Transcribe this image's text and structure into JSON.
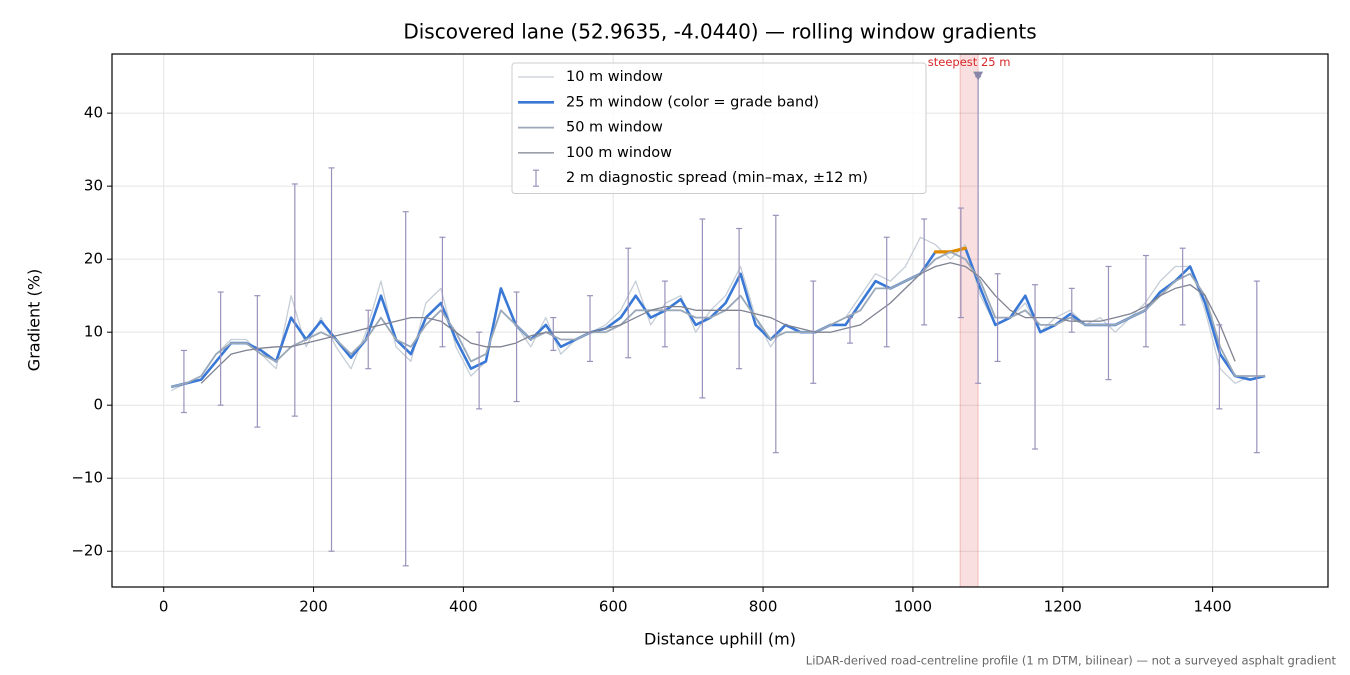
{
  "chart_data": {
    "type": "line",
    "title": "Discovered lane (52.9635, -4.0440) — rolling window gradients",
    "xlabel": "Distance uphill (m)",
    "ylabel": "Gradient (%)",
    "footnote": "LiDAR-derived road-centreline profile (1 m DTM, bilinear) — not a surveyed asphalt gradient",
    "xlim": [
      -69,
      1554
    ],
    "ylim": [
      -24.9,
      48.1
    ],
    "xticks": [
      0,
      200,
      400,
      600,
      800,
      1000,
      1200,
      1400
    ],
    "yticks": [
      {
        "value": -20,
        "label": "−20"
      },
      {
        "value": -10,
        "label": "−10"
      },
      0,
      10,
      20,
      30,
      40
    ],
    "grid": true,
    "legend": "upper center",
    "x": [
      10,
      30,
      50,
      70,
      90,
      110,
      130,
      150,
      170,
      190,
      210,
      230,
      250,
      270,
      290,
      310,
      330,
      350,
      370,
      390,
      410,
      430,
      450,
      470,
      490,
      510,
      530,
      550,
      570,
      590,
      610,
      630,
      650,
      670,
      690,
      710,
      730,
      750,
      770,
      790,
      810,
      830,
      850,
      870,
      890,
      910,
      930,
      950,
      970,
      990,
      1010,
      1030,
      1050,
      1070,
      1090,
      1110,
      1130,
      1150,
      1170,
      1190,
      1210,
      1230,
      1250,
      1270,
      1290,
      1310,
      1330,
      1350,
      1370,
      1390,
      1410,
      1430,
      1450,
      1470
    ],
    "series": [
      {
        "name": "10 m window",
        "color": "#c6ced7",
        "width": 1.3,
        "values": [
          2,
          3,
          4,
          7,
          9,
          9,
          7,
          5,
          15,
          8,
          12,
          8,
          5,
          10,
          17,
          8,
          6,
          14,
          16,
          8,
          4,
          6,
          16,
          11,
          8,
          12,
          7,
          9,
          10,
          11,
          13,
          17,
          11,
          14,
          15,
          10,
          13,
          15,
          19,
          12,
          8,
          11,
          10,
          10,
          11,
          12,
          15,
          18,
          17,
          19,
          23,
          22,
          20,
          22,
          15,
          11,
          12,
          14,
          10,
          12,
          13,
          11,
          12,
          10,
          12,
          14,
          17,
          19,
          19,
          13,
          5,
          3,
          4,
          4
        ]
      },
      {
        "name": "25 m window (color = grade band)",
        "color": "#3a78d6",
        "width": 2.6,
        "band_threshold": 20,
        "band_color": "#e08a00",
        "values": [
          2.5,
          3,
          3.5,
          6,
          8.5,
          8.5,
          7.5,
          6,
          12,
          9,
          11.5,
          9,
          6.5,
          9,
          15,
          9,
          7,
          12,
          14,
          9,
          5,
          6,
          16,
          11,
          9,
          11,
          8,
          9,
          10,
          10.5,
          12,
          15,
          12,
          13,
          14.5,
          11,
          12,
          14,
          18,
          11,
          9,
          11,
          10,
          10,
          11,
          11,
          14,
          17,
          16,
          17,
          18,
          21,
          21,
          21.5,
          16,
          11,
          12,
          15,
          10,
          11,
          12.5,
          11,
          11,
          11,
          12,
          13,
          15.5,
          17,
          19,
          14,
          7,
          4,
          3.5,
          4
        ]
      },
      {
        "name": "50 m window",
        "color": "#9aa8b8",
        "width": 1.8,
        "values": [
          2.5,
          3,
          4,
          7,
          8.5,
          8.5,
          7,
          6,
          8,
          9,
          10,
          9,
          7,
          9,
          12,
          9,
          8,
          11,
          13,
          10,
          6,
          7,
          13,
          11,
          9,
          10,
          9,
          9,
          10,
          10,
          11,
          13,
          13,
          13,
          13,
          12,
          12,
          13,
          15,
          12,
          9,
          10,
          10,
          10,
          11,
          12,
          13,
          16,
          16,
          17,
          18,
          20,
          21,
          20,
          17,
          12,
          12,
          13,
          11,
          11,
          12,
          11,
          11,
          11,
          12,
          13,
          15,
          17,
          18,
          15,
          8,
          4,
          4,
          4
        ]
      },
      {
        "name": "100 m window",
        "color": "#7f8291",
        "width": 1.3,
        "values": [
          null,
          null,
          3,
          5,
          7,
          7.5,
          7.8,
          8,
          8,
          8.5,
          9,
          9.5,
          10,
          10.5,
          11,
          11.5,
          12,
          12,
          11.5,
          10,
          8.5,
          8,
          8,
          8.5,
          9.5,
          10,
          10,
          10,
          10,
          10.5,
          11,
          12,
          13,
          13.5,
          13.5,
          13,
          13,
          13,
          13,
          12.5,
          12,
          11,
          10.5,
          10,
          10,
          10.5,
          11,
          12.5,
          14,
          16,
          18,
          19,
          19.5,
          19,
          17.5,
          15,
          13,
          12,
          12,
          12,
          11.5,
          11.5,
          11.5,
          12,
          12.5,
          13.5,
          15,
          16,
          16.5,
          15,
          11,
          6,
          null,
          null
        ]
      }
    ],
    "errorbars": {
      "name": "2 m diagnostic spread (min–max, ±12 m)",
      "color": "#9b92bb",
      "x": [
        27,
        76,
        125,
        175,
        224,
        273,
        323,
        372,
        421,
        471,
        520,
        569,
        620,
        669,
        719,
        768,
        817,
        867,
        916,
        965,
        1015,
        1064,
        1087,
        1113,
        1163,
        1212,
        1261,
        1311,
        1360,
        1409,
        1459
      ],
      "low": [
        -1,
        0,
        -3,
        -1.5,
        -20,
        5,
        -22,
        8,
        -0.5,
        0.5,
        7.5,
        6,
        6.5,
        8,
        1,
        5,
        -6.5,
        3,
        8.5,
        8,
        11,
        12,
        3,
        6,
        -6,
        10,
        3.5,
        8,
        11,
        -0.5,
        -6.5
      ],
      "high": [
        7.5,
        15.5,
        15,
        30.3,
        32.5,
        13,
        26.5,
        23,
        10,
        15.5,
        12,
        15,
        21.5,
        17,
        25.5,
        24.2,
        26,
        17,
        12,
        23,
        25.5,
        27,
        45,
        18,
        16.5,
        16,
        19,
        20.5,
        21.5,
        11,
        17
      ]
    },
    "highlight": {
      "label": "steepest 25 m",
      "x0": 1063,
      "x1": 1087,
      "marker_y": 45,
      "color": "#d62728"
    }
  }
}
